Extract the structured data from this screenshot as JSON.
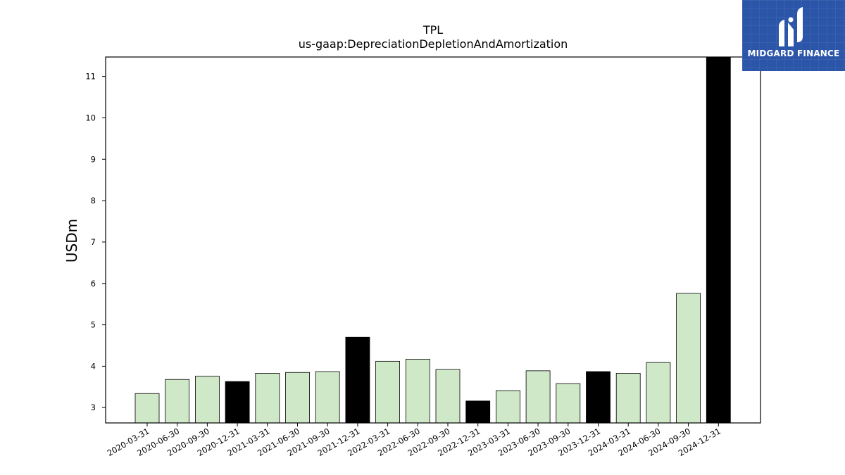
{
  "logo": {
    "text": "MIDGARD FINANCE",
    "icon": "midgard-logo-icon",
    "color": "#2b55a8"
  },
  "chart_data": {
    "type": "bar",
    "title": "TPL",
    "subtitle": "us-gaap:DepreciationDepletionAndAmortization",
    "xlabel": "",
    "ylabel": "USDm",
    "ylim": [
      2.63,
      11.47
    ],
    "yticks": [
      3,
      4,
      5,
      6,
      7,
      8,
      9,
      10,
      11
    ],
    "grid": false,
    "categories": [
      "2020-03-31",
      "2020-06-30",
      "2020-09-30",
      "2020-12-31",
      "2021-03-31",
      "2021-06-30",
      "2021-09-30",
      "2021-12-31",
      "2022-03-31",
      "2022-06-30",
      "2022-09-30",
      "2022-12-31",
      "2023-03-31",
      "2023-06-30",
      "2023-09-30",
      "2023-12-31",
      "2024-03-31",
      "2024-06-30",
      "2024-09-30",
      "2024-12-31"
    ],
    "values": [
      3.34,
      3.68,
      3.76,
      3.63,
      3.83,
      3.85,
      3.87,
      4.7,
      4.12,
      4.17,
      3.92,
      3.16,
      3.41,
      3.89,
      3.58,
      3.87,
      3.83,
      4.09,
      5.76,
      11.47
    ],
    "colors": {
      "quarter": "#cfe8c8",
      "year_end": "#000000",
      "edge": "#000000"
    }
  }
}
